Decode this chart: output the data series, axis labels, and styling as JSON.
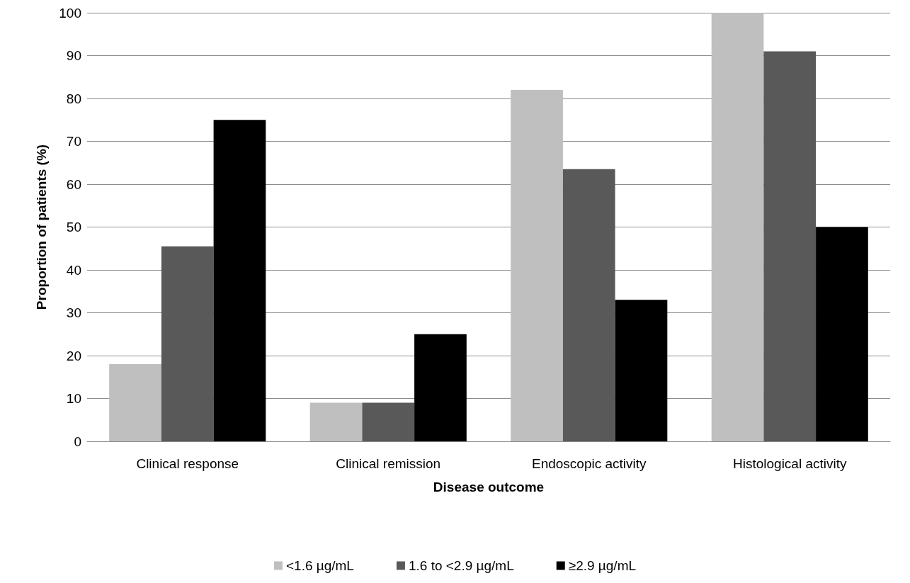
{
  "chart_data": {
    "type": "bar",
    "xlabel": "Disease outcome",
    "ylabel": "Proportion of patients (%)",
    "categories": [
      "Clinical response",
      "Clinical remission",
      "Endoscopic activity",
      "Histological activity"
    ],
    "series": [
      {
        "name": "<1.6 µg/mL",
        "color": "#bfbfbf",
        "values": [
          18,
          9,
          82,
          100
        ]
      },
      {
        "name": "1.6 to <2.9 µg/mL",
        "color": "#595959",
        "values": [
          45.5,
          9,
          63.5,
          91
        ]
      },
      {
        "name": "≥2.9 µg/mL",
        "color": "#000000",
        "values": [
          75,
          25,
          33,
          50
        ]
      }
    ],
    "ylim": [
      0,
      100
    ],
    "yticks": [
      0,
      10,
      20,
      30,
      40,
      50,
      60,
      70,
      80,
      90,
      100
    ],
    "grid": "y",
    "legend": "bottom"
  }
}
